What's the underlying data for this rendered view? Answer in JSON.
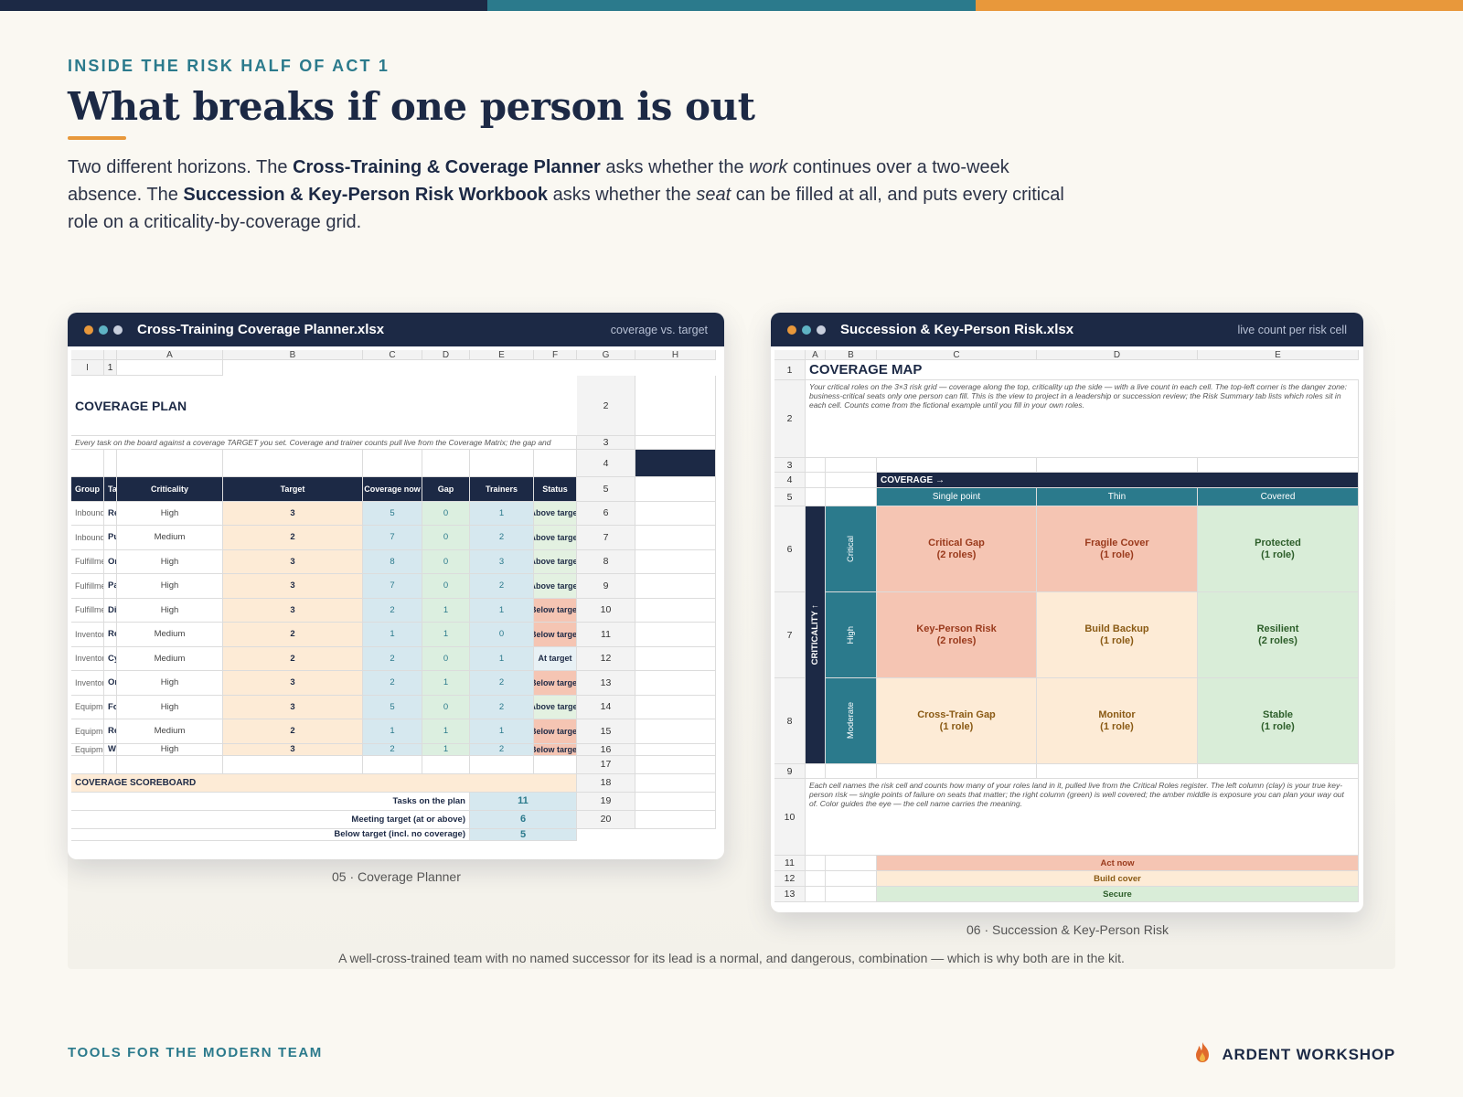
{
  "colors": {
    "navy": "#1c2945",
    "teal": "#2b7a8c",
    "orange": "#e8983b",
    "clay": "#f5c5b3",
    "amber": "#fdebd6",
    "green": "#d9edd8",
    "blue": "#d6e8ef",
    "pale_green": "#e3f1e1"
  },
  "top_bar": [
    "#1c2945",
    "#2b7a8c",
    "#e8983b"
  ],
  "header": {
    "eyebrow": "INSIDE THE RISK HALF OF ACT 1",
    "title": "What breaks if one person is out"
  },
  "lede": {
    "p1": "Two different horizons. The ",
    "b1": "Cross-Training & Coverage Planner",
    "p2": " asks whether the ",
    "i1": "work",
    "p3": " continues over a two-week absence. The ",
    "b2": "Succession & Key-Person Risk Workbook",
    "p4": " asks whether the ",
    "i2": "seat",
    "p5": " can be filled at all, and puts every critical role on a criticality-by-coverage grid."
  },
  "win1": {
    "name": "Cross-Training Coverage Planner.xlsx",
    "meta": "coverage vs. target",
    "caption": "05 · Coverage Planner",
    "cols": [
      "A",
      "B",
      "C",
      "D",
      "E",
      "F",
      "G",
      "H",
      "I"
    ],
    "sheet_title": "COVERAGE PLAN",
    "description": "Every task on the board against a coverage TARGET you set. Coverage and trainer counts pull live from the Coverage Matrix; the gap and status calculate for you. Set the target in the light-orange column, then work the 'Below target' rows — the Cross-Training Plan tab turns them into pairings.",
    "headers": [
      "Group",
      "Task",
      "Criticality",
      "Target",
      "Coverage now",
      "Gap",
      "Trainers",
      "Status"
    ],
    "rows": [
      [
        "Inbound",
        "Receiving & Check-In",
        "High",
        "3",
        "5",
        "0",
        "1",
        "Above target"
      ],
      [
        "Inbound",
        "Putaway & Stock Location",
        "Medium",
        "2",
        "7",
        "0",
        "2",
        "Above target"
      ],
      [
        "Fulfillment",
        "Order Picking",
        "High",
        "3",
        "8",
        "0",
        "3",
        "Above target"
      ],
      [
        "Fulfillment",
        "Packing & Labeling",
        "High",
        "3",
        "7",
        "0",
        "2",
        "Above target"
      ],
      [
        "Fulfillment",
        "Dispatch & Load Planning",
        "High",
        "3",
        "2",
        "1",
        "1",
        "Below target"
      ],
      [
        "Inventory & Quality",
        "Returns Processing",
        "Medium",
        "2",
        "1",
        "1",
        "0",
        "Below target"
      ],
      [
        "Inventory & Quality",
        "Cycle Counting",
        "Medium",
        "2",
        "2",
        "0",
        "1",
        "At target"
      ],
      [
        "Inventory & Quality",
        "Order QC / Accuracy Check",
        "High",
        "3",
        "2",
        "1",
        "2",
        "Below target"
      ],
      [
        "Equipment & Safety",
        "Forklift / MHE Operation",
        "High",
        "3",
        "5",
        "0",
        "2",
        "Above target"
      ],
      [
        "Equipment & Safety",
        "Reach Truck Operation",
        "Medium",
        "2",
        "1",
        "1",
        "1",
        "Below target"
      ],
      [
        "Equipment & Safety",
        "WMS / Inbound System Entry",
        "High",
        "3",
        "2",
        "1",
        "2",
        "Below target"
      ]
    ],
    "scoreboard_title": "COVERAGE SCOREBOARD",
    "scoreboard": [
      [
        "Tasks on the plan",
        "11"
      ],
      [
        "Meeting target (at or above)",
        "6"
      ],
      [
        "Below target (incl. no coverage)",
        "5"
      ]
    ]
  },
  "win2": {
    "name": "Succession & Key-Person Risk.xlsx",
    "meta": "live count per risk cell",
    "caption": "06 · Succession & Key-Person Risk",
    "cols": [
      "A",
      "B",
      "C",
      "D",
      "E"
    ],
    "sheet_title": "COVERAGE MAP",
    "description": "Your critical roles on the 3×3 risk grid — coverage along the top, criticality up the side — with a live count in each cell. The top-left corner is the danger zone: business-critical seats only one person can fill. This is the view to project in a leadership or succession review; the Risk Summary tab lists which roles sit in each cell. Counts come from the fictional example until you fill in your own roles.",
    "coverage_label": "COVERAGE →",
    "coverage_cols": [
      "Single point",
      "Thin",
      "Covered"
    ],
    "criticality_label": "CRITICALITY ↑",
    "criticality_rows": [
      "Critical",
      "High",
      "Moderate"
    ],
    "cells": [
      [
        [
          "Critical Gap",
          "(2 roles)"
        ],
        [
          "Fragile Cover",
          "(1 role)"
        ],
        [
          "Protected",
          "(1 role)"
        ]
      ],
      [
        [
          "Key-Person Risk",
          "(2 roles)"
        ],
        [
          "Build Backup",
          "(1 role)"
        ],
        [
          "Resilient",
          "(2 roles)"
        ]
      ],
      [
        [
          "Cross-Train Gap",
          "(1 role)"
        ],
        [
          "Monitor",
          "(1 role)"
        ],
        [
          "Stable",
          "(1 role)"
        ]
      ]
    ],
    "legend_note": "Each cell names the risk cell and counts how many of your roles land in it, pulled live from the Critical Roles register. The left column (clay) is your true key-person risk — single points of failure on seats that matter; the right column (green) is well covered; the amber middle is exposure you can plan your way out of. Color guides the eye — the cell name carries the meaning.",
    "legend": [
      "Act now",
      "Build cover",
      "Secure"
    ]
  },
  "bottom_note": "A well-cross-trained team with no named successor for its lead is a normal, and dangerous, combination — which is why both are in the kit.",
  "footer": {
    "left": "TOOLS FOR THE MODERN TEAM",
    "right": "ARDENT WORKSHOP",
    "logo_icon": "flame-icon"
  }
}
